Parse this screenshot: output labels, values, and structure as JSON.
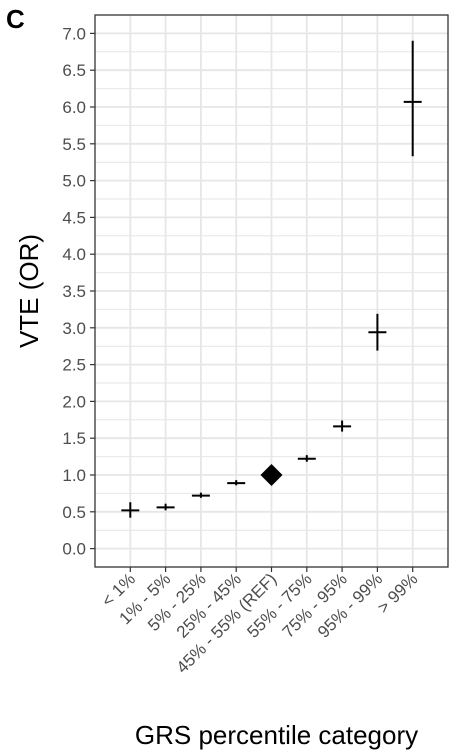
{
  "panel_label": "C",
  "colors": {
    "grid": "#e6e6e6",
    "border": "#333333",
    "mark": "#000000",
    "tick_text": "#4d4d4d"
  },
  "chart_data": {
    "type": "scatter",
    "subtype": "point estimate with error bars",
    "title": "",
    "xlabel": "GRS percentile category",
    "ylabel": "VTE (OR)",
    "ylim": [
      -0.25,
      7.25
    ],
    "yticks": [
      "0.0",
      "0.5",
      "1.0",
      "1.5",
      "2.0",
      "2.5",
      "3.0",
      "3.5",
      "4.0",
      "4.5",
      "5.0",
      "5.5",
      "6.0",
      "6.5",
      "7.0"
    ],
    "grid": true,
    "legend": "none",
    "categories": [
      "< 1%",
      "1% - 5%",
      "5% - 25%",
      "25% - 45%",
      "45% - 55% (REF)",
      "55% - 75%",
      "75% - 95%",
      "95% - 99%",
      "> 99%"
    ],
    "series": [
      {
        "values": [
          0.52,
          0.56,
          0.72,
          0.89,
          1.0,
          1.22,
          1.66,
          2.94,
          6.07
        ],
        "lower": [
          0.42,
          0.52,
          0.69,
          0.86,
          1.0,
          1.18,
          1.59,
          2.69,
          5.33
        ],
        "upper": [
          0.63,
          0.61,
          0.76,
          0.93,
          1.0,
          1.27,
          1.74,
          3.19,
          6.9
        ],
        "markers": [
          "plus",
          "plus",
          "plus",
          "plus",
          "diamond",
          "plus",
          "plus",
          "plus",
          "plus"
        ]
      }
    ]
  }
}
